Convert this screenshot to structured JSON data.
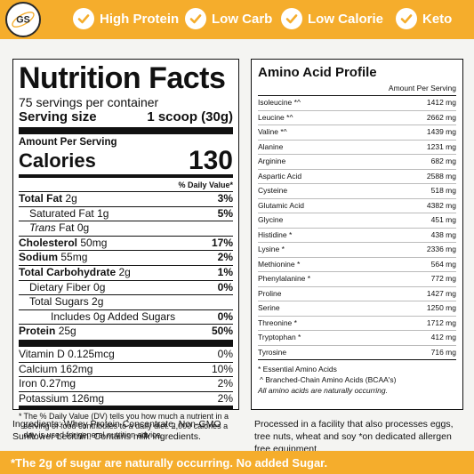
{
  "header": {
    "logo_text": "GS",
    "badges": [
      "High Protein",
      "Low Carb",
      "Low Calorie",
      "Keto"
    ],
    "accent_color": "#f5ad2c"
  },
  "nutrition": {
    "title": "Nutrition Facts",
    "servings": "75 servings per container",
    "serving_size_label": "Serving size",
    "serving_size_value": "1 scoop (30g)",
    "amount_per_serving": "Amount Per Serving",
    "calories_label": "Calories",
    "calories_value": "130",
    "dv_header": "% Daily Value*",
    "rows": [
      {
        "label": "Total Fat",
        "amount": "2g",
        "dv": "3%"
      },
      {
        "label": "Saturated Fat",
        "amount": "1g",
        "dv": "5%"
      },
      {
        "label": "Trans",
        "amount": "Fat 0g",
        "dv": ""
      },
      {
        "label": "Cholesterol",
        "amount": "50mg",
        "dv": "17%"
      },
      {
        "label": "Sodium",
        "amount": "55mg",
        "dv": "2%"
      },
      {
        "label": "Total Carbohydrate",
        "amount": "2g",
        "dv": "1%"
      },
      {
        "label": "Dietary Fiber",
        "amount": "0g",
        "dv": "0%"
      },
      {
        "label": "Total Sugars",
        "amount": "2g",
        "dv": ""
      },
      {
        "label": "Includes 0g Added Sugars",
        "amount": "",
        "dv": "0%"
      },
      {
        "label": "Protein",
        "amount": "25g",
        "dv": "50%"
      }
    ],
    "vitamins": [
      {
        "text": "Vitamin D 0.125mcg",
        "dv": "0%"
      },
      {
        "text": "Calcium 162mg",
        "dv": "10%"
      },
      {
        "text": "Iron 0.27mg",
        "dv": "2%"
      },
      {
        "text": "Potassium 126mg",
        "dv": "2%"
      }
    ],
    "footnote_mark": "*",
    "footnote": "The % Daily Value (DV) tells you how much a nutrient in a serving of food contributes to a daily diet. 2,000 calories a day is used for general nutrition advice."
  },
  "amino": {
    "title": "Amino Acid Profile",
    "column_header": "Amount Per Serving",
    "rows": [
      {
        "name": "Isoleucine *^",
        "amount": "1412 mg"
      },
      {
        "name": "Leucine *^",
        "amount": "2662 mg"
      },
      {
        "name": "Valine *^",
        "amount": "1439 mg"
      },
      {
        "name": "Alanine",
        "amount": "1231 mg"
      },
      {
        "name": "Arginine",
        "amount": "682 mg"
      },
      {
        "name": "Aspartic Acid",
        "amount": "2588 mg"
      },
      {
        "name": "Cysteine",
        "amount": "518 mg"
      },
      {
        "name": "Glutamic Acid",
        "amount": "4382 mg"
      },
      {
        "name": "Glycine",
        "amount": "451 mg"
      },
      {
        "name": "Histidine *",
        "amount": "438 mg"
      },
      {
        "name": "Lysine *",
        "amount": "2336 mg"
      },
      {
        "name": "Methionine *",
        "amount": "564 mg"
      },
      {
        "name": "Phenylalanine *",
        "amount": "772 mg"
      },
      {
        "name": "Proline",
        "amount": "1427 mg"
      },
      {
        "name": "Serine",
        "amount": "1250 mg"
      },
      {
        "name": "Threonine *",
        "amount": "1712 mg"
      },
      {
        "name": "Tryptophan *",
        "amount": "412 mg"
      },
      {
        "name": "Tyrosine",
        "amount": "716 mg"
      }
    ],
    "note_essential": "* Essential Amino Acids",
    "note_bcaa": "^ Branched-Chain Amino Acids (BCAA's)",
    "note_natural": "All amino acids are naturally occurring."
  },
  "ingredients": "Ingredients: Whey Protein Concentrate, Non-GMO Sunflower Lecithin. Contains milk ingredients.",
  "facility": "Processed in a facility that also processes eggs, tree nuts, wheat and soy *on dedicated allergen free equipment.",
  "sugar_banner": "*The 2g of sugar are naturally occurring. No added Sugar."
}
